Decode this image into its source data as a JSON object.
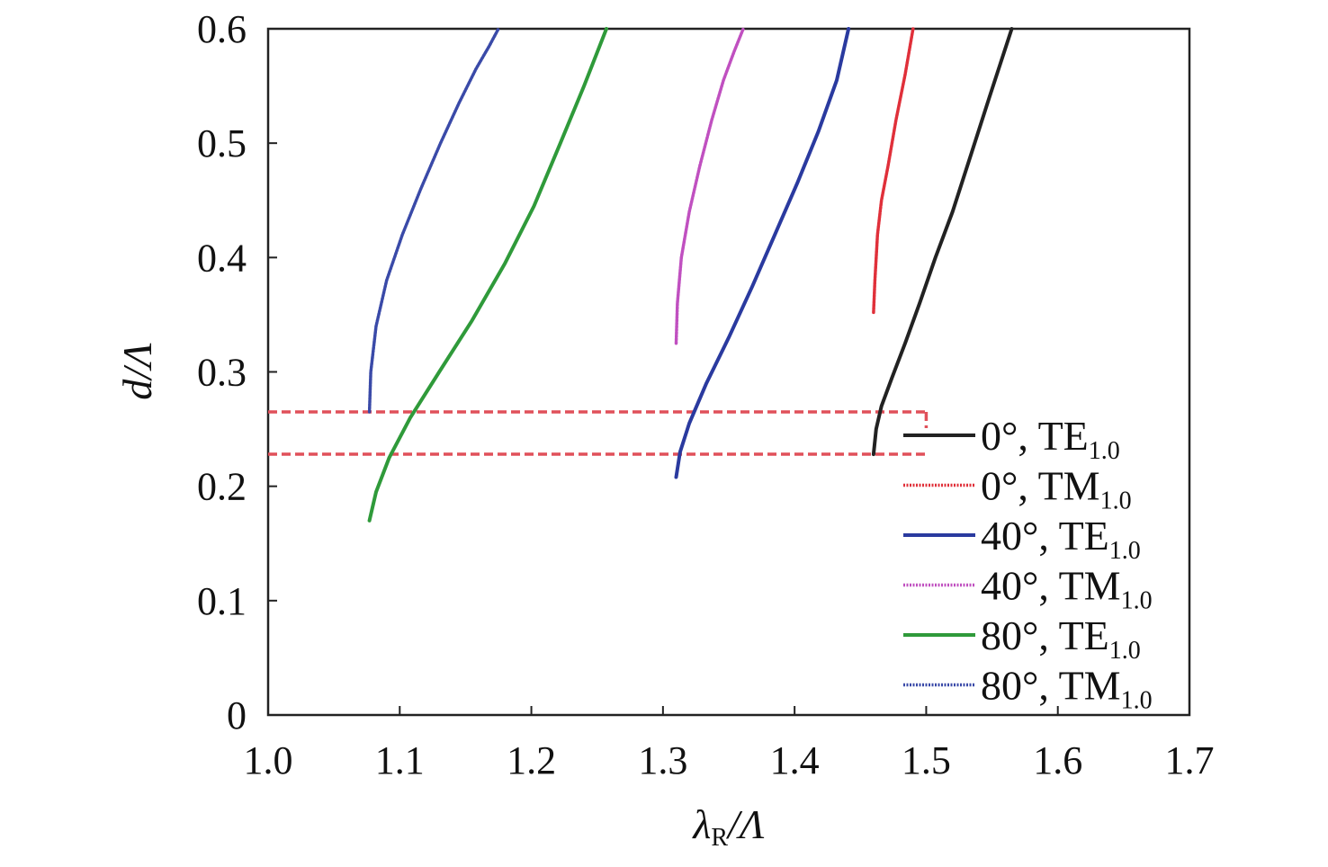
{
  "chart_data": {
    "type": "line",
    "title": "",
    "xlabel_parts": {
      "main": "λ",
      "sub": "R",
      "rest": "/Λ"
    },
    "ylabel": "d/Λ",
    "xlim": [
      1.0,
      1.7
    ],
    "ylim": [
      0,
      0.6
    ],
    "x_ticks": [
      "1.0",
      "1.1",
      "1.2",
      "1.3",
      "1.4",
      "1.5",
      "1.6",
      "1.7"
    ],
    "y_ticks": [
      "0",
      "0.1",
      "0.2",
      "0.3",
      "0.4",
      "0.5",
      "0.6"
    ],
    "grid": false,
    "legend_position": "bottom-right",
    "series": [
      {
        "name": "0°, TE",
        "sub": "1.0",
        "color": "#222222",
        "style": "solid",
        "x": [
          1.46,
          1.462,
          1.466,
          1.474,
          1.484,
          1.495,
          1.507,
          1.52,
          1.534,
          1.548,
          1.565
        ],
        "y": [
          0.228,
          0.25,
          0.27,
          0.295,
          0.325,
          0.36,
          0.4,
          0.44,
          0.49,
          0.54,
          0.6
        ]
      },
      {
        "name": "0°, TM",
        "sub": "1.0",
        "color": "#e0303a",
        "style": "dotted",
        "x": [
          1.46,
          1.461,
          1.463,
          1.466,
          1.471,
          1.477,
          1.484,
          1.49
        ],
        "y": [
          0.352,
          0.38,
          0.42,
          0.45,
          0.48,
          0.52,
          0.56,
          0.6
        ]
      },
      {
        "name": "40°, TE",
        "sub": "1.0",
        "color": "#2a3a9f",
        "style": "solid",
        "x": [
          1.31,
          1.313,
          1.32,
          1.333,
          1.35,
          1.368,
          1.385,
          1.402,
          1.418,
          1.432,
          1.441
        ],
        "y": [
          0.208,
          0.23,
          0.255,
          0.29,
          0.33,
          0.375,
          0.42,
          0.465,
          0.51,
          0.555,
          0.6
        ]
      },
      {
        "name": "40°, TM",
        "sub": "1.0",
        "color": "#c050c0",
        "style": "dotted",
        "x": [
          1.31,
          1.311,
          1.314,
          1.32,
          1.328,
          1.337,
          1.346,
          1.354,
          1.361
        ],
        "y": [
          0.325,
          0.36,
          0.4,
          0.44,
          0.48,
          0.52,
          0.555,
          0.58,
          0.6
        ]
      },
      {
        "name": "80°, TE",
        "sub": "1.0",
        "color": "#2f9a3a",
        "style": "solid",
        "x": [
          1.077,
          1.082,
          1.092,
          1.108,
          1.13,
          1.155,
          1.18,
          1.202,
          1.222,
          1.24,
          1.257
        ],
        "y": [
          0.17,
          0.195,
          0.225,
          0.26,
          0.3,
          0.345,
          0.395,
          0.445,
          0.5,
          0.55,
          0.6
        ]
      },
      {
        "name": "80°, TM",
        "sub": "1.0",
        "color": "#3a4aa8",
        "style": "dotted",
        "x": [
          1.077,
          1.078,
          1.082,
          1.09,
          1.102,
          1.116,
          1.131,
          1.145,
          1.158,
          1.168,
          1.175
        ],
        "y": [
          0.265,
          0.3,
          0.34,
          0.38,
          0.42,
          0.46,
          0.5,
          0.535,
          0.565,
          0.585,
          0.6
        ]
      }
    ],
    "reference_lines": [
      {
        "color": "#e0505a",
        "style": "dashed",
        "y": 0.265,
        "x_from": 1.0,
        "x_to": 1.5
      },
      {
        "color": "#e0505a",
        "style": "dashed",
        "y": 0.228,
        "x_from": 1.0,
        "x_to": 1.5
      }
    ]
  }
}
